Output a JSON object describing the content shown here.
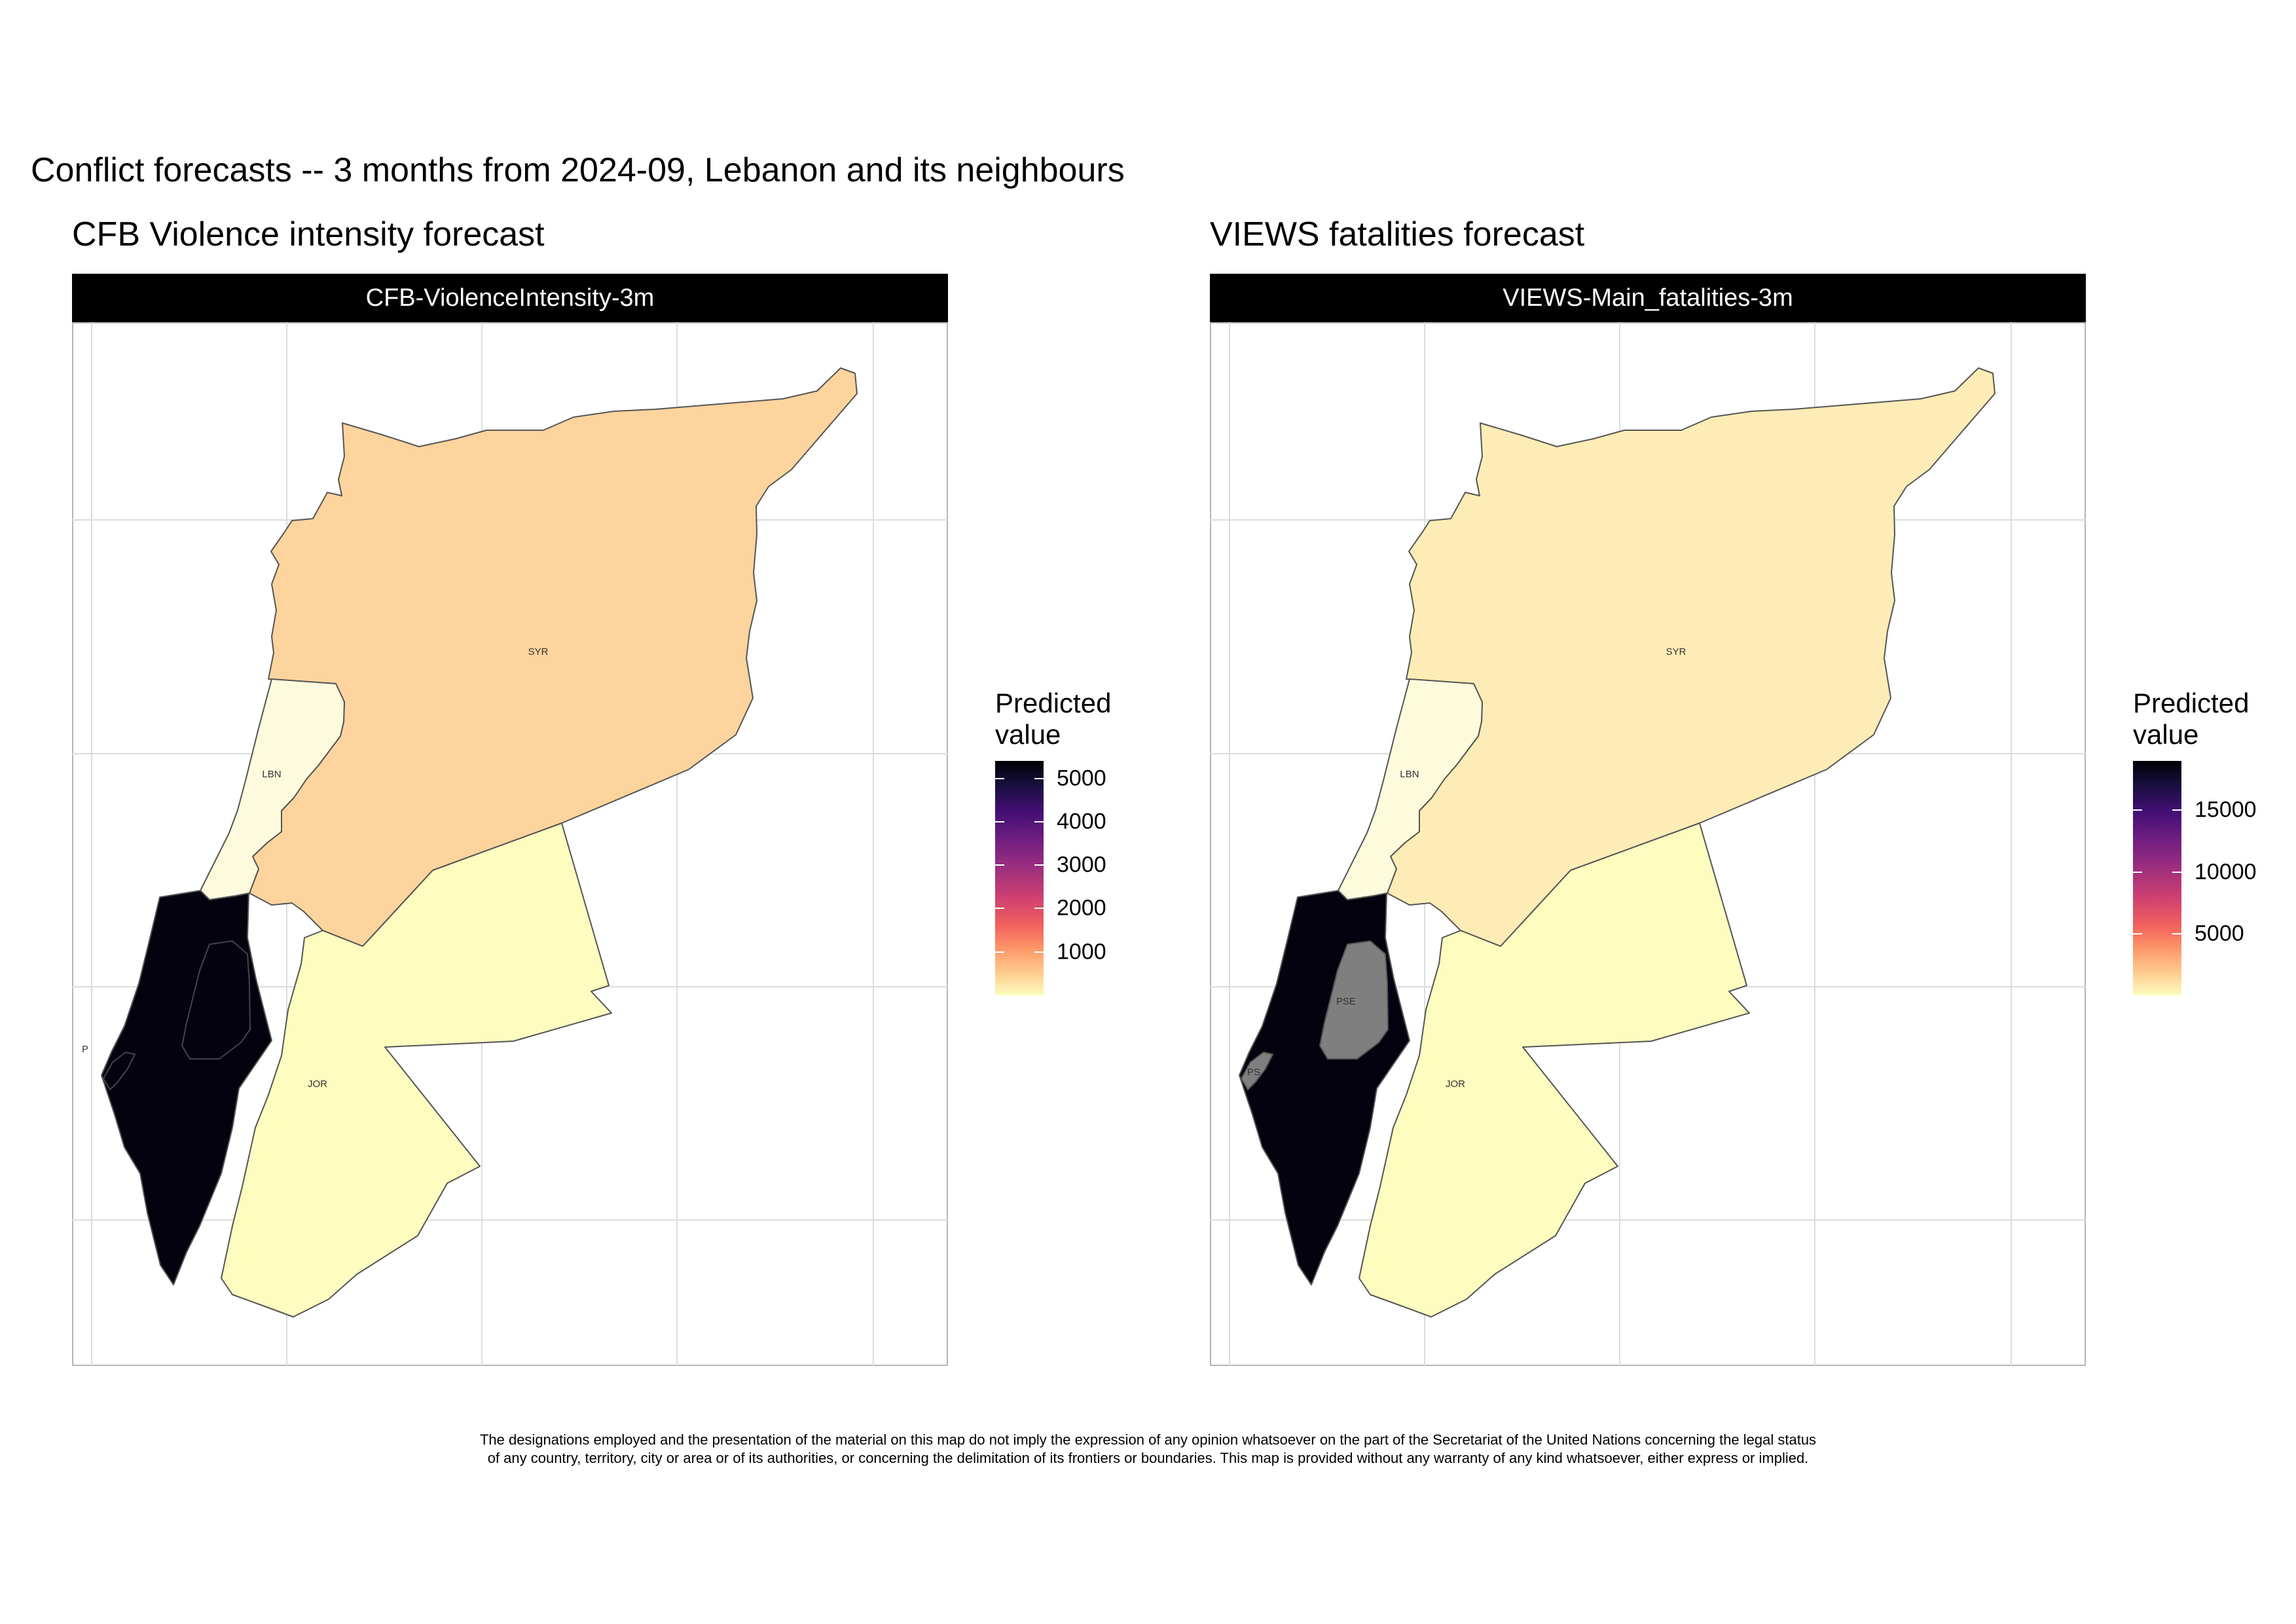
{
  "title": "Conflict forecasts -- 3 months from 2024-09, Lebanon and its neighbours",
  "colors": {
    "background": "#ffffff",
    "grid": "#dcdcdc",
    "border": "#555555",
    "strip": "#000000",
    "no_data": "#7f7f7f"
  },
  "panels": [
    {
      "subtitle": "CFB Violence intensity forecast",
      "strip_label": "CFB-ViolenceIntensity-3m",
      "legend": {
        "title_line1": "Predicted",
        "title_line2": "value",
        "scale": "magma (reversed)",
        "range": [
          0,
          5400
        ],
        "ticks": [
          "1000",
          "2000",
          "3000",
          "4000",
          "5000"
        ]
      },
      "regions": [
        {
          "code": "SYR",
          "label": "SYR",
          "fill": "#fdd49e"
        },
        {
          "code": "LBN",
          "label": "LBN",
          "fill": "#fefadd"
        },
        {
          "code": "JOR",
          "label": "JOR",
          "fill": "#fcfdbf"
        },
        {
          "code": "ISR",
          "label": "",
          "fill": "#050210"
        },
        {
          "code": "PSE",
          "label": "P",
          "fill": "#050210"
        }
      ]
    },
    {
      "subtitle": "VIEWS fatalities forecast",
      "strip_label": "VIEWS-Main_fatalities-3m",
      "legend": {
        "title_line1": "Predicted",
        "title_line2": "value",
        "scale": "magma (reversed)",
        "range": [
          0,
          19000
        ],
        "ticks": [
          "5000",
          "10000",
          "15000"
        ]
      },
      "regions": [
        {
          "code": "SYR",
          "label": "SYR",
          "fill": "#fdecb5"
        },
        {
          "code": "LBN",
          "label": "LBN",
          "fill": "#fefadc"
        },
        {
          "code": "JOR",
          "label": "JOR",
          "fill": "#fcfdbf"
        },
        {
          "code": "ISR",
          "label": "",
          "fill": "#050210"
        },
        {
          "code": "PSE",
          "label": "PSE",
          "fill": "#7f7f7f"
        },
        {
          "code": "PSE-GAZA",
          "label": "PS",
          "fill": "#7f7f7f"
        }
      ]
    }
  ],
  "disclaimer": {
    "line1": "The designations employed and the presentation of the material on this map do not imply the expression of any opinion whatsoever on the part of the Secretariat of the United Nations concerning the legal status",
    "line2": "of any country, territory, city or area or of its authorities, or concerning the delimitation of its frontiers or boundaries. This map is provided without any warranty of any kind whatsoever, either express or implied."
  }
}
